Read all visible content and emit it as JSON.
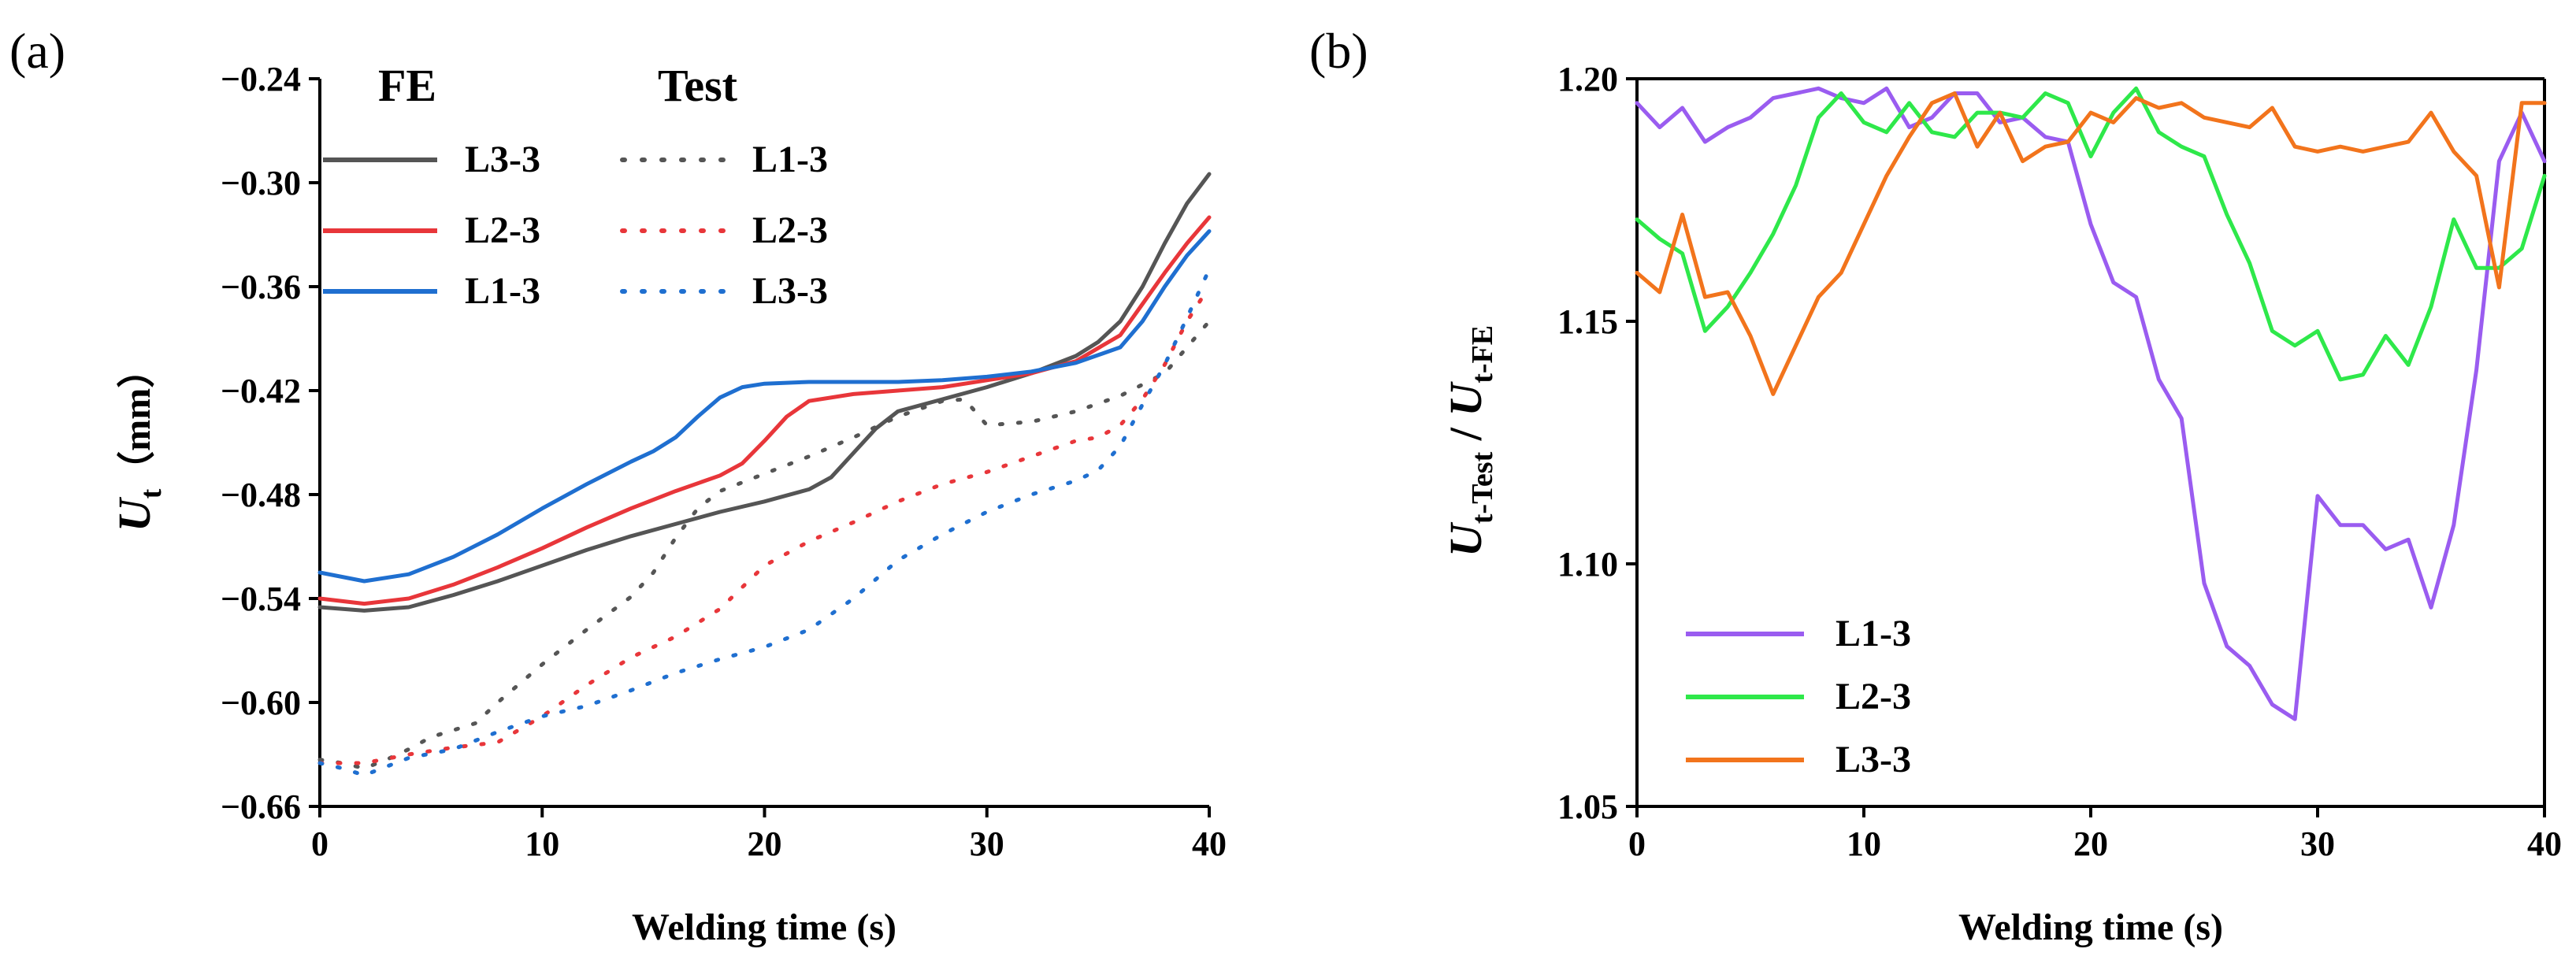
{
  "chart_data": [
    {
      "panel_label": "(a)",
      "type": "line",
      "xlabel": "Welding time (s)",
      "ylabel_main": "U",
      "ylabel_sub": "t",
      "ylabel_unit": "（mm）",
      "xlim": [
        0,
        40
      ],
      "ylim": [
        -0.66,
        -0.24
      ],
      "xticks": [
        "0",
        "10",
        "20",
        "30",
        "40"
      ],
      "yticks": [
        "−0.24",
        "−0.30",
        "−0.36",
        "−0.42",
        "−0.48",
        "−0.54",
        "−0.60",
        "−0.66"
      ],
      "legend_heads": {
        "fe": "FE",
        "test": "Test"
      },
      "legend_position": "top-left",
      "series": [
        {
          "name": "L3-3",
          "group": "FE",
          "color": "#555555",
          "dash": "solid",
          "x": [
            0,
            2,
            4,
            6,
            8,
            10,
            12,
            14,
            16,
            18,
            20,
            22,
            23,
            24,
            25,
            26,
            28,
            30,
            32,
            34,
            35,
            36,
            37,
            38,
            39,
            40
          ],
          "y": [
            -0.545,
            -0.547,
            -0.545,
            -0.538,
            -0.53,
            -0.521,
            -0.512,
            -0.504,
            -0.497,
            -0.49,
            -0.484,
            -0.477,
            -0.47,
            -0.456,
            -0.442,
            -0.432,
            -0.425,
            -0.418,
            -0.41,
            -0.4,
            -0.392,
            -0.38,
            -0.36,
            -0.335,
            -0.312,
            -0.295
          ]
        },
        {
          "name": "L2-3",
          "group": "FE",
          "color": "#e8363a",
          "dash": "solid",
          "x": [
            0,
            2,
            4,
            6,
            8,
            10,
            12,
            14,
            16,
            18,
            19,
            20,
            21,
            22,
            24,
            26,
            28,
            30,
            32,
            34,
            36,
            37,
            38,
            39,
            40
          ],
          "y": [
            -0.54,
            -0.543,
            -0.54,
            -0.532,
            -0.522,
            -0.511,
            -0.499,
            -0.488,
            -0.478,
            -0.469,
            -0.462,
            -0.449,
            -0.435,
            -0.426,
            -0.422,
            -0.42,
            -0.418,
            -0.414,
            -0.41,
            -0.403,
            -0.388,
            -0.37,
            -0.352,
            -0.335,
            -0.32
          ]
        },
        {
          "name": "L1-3",
          "group": "FE",
          "color": "#1f6fd0",
          "dash": "solid",
          "x": [
            0,
            2,
            4,
            6,
            8,
            10,
            12,
            14,
            15,
            16,
            17,
            18,
            19,
            20,
            22,
            24,
            26,
            28,
            30,
            32,
            34,
            36,
            37,
            38,
            39,
            40
          ],
          "y": [
            -0.525,
            -0.53,
            -0.526,
            -0.516,
            -0.503,
            -0.488,
            -0.474,
            -0.461,
            -0.455,
            -0.447,
            -0.435,
            -0.424,
            -0.418,
            -0.416,
            -0.415,
            -0.415,
            -0.415,
            -0.414,
            -0.412,
            -0.409,
            -0.404,
            -0.395,
            -0.38,
            -0.36,
            -0.342,
            -0.328
          ]
        },
        {
          "name": "L1-3",
          "group": "Test",
          "color": "#555555",
          "dash": "dotted",
          "x": [
            0,
            1,
            2,
            3,
            4,
            5,
            6,
            7,
            8,
            10,
            12,
            14,
            15,
            16,
            17,
            18,
            20,
            22,
            24,
            26,
            28,
            29,
            30,
            32,
            34,
            36,
            38,
            40
          ],
          "y": [
            -0.633,
            -0.635,
            -0.638,
            -0.633,
            -0.627,
            -0.62,
            -0.616,
            -0.612,
            -0.6,
            -0.578,
            -0.558,
            -0.539,
            -0.525,
            -0.505,
            -0.488,
            -0.478,
            -0.468,
            -0.458,
            -0.447,
            -0.435,
            -0.426,
            -0.425,
            -0.44,
            -0.438,
            -0.432,
            -0.423,
            -0.41,
            -0.38
          ]
        },
        {
          "name": "L2-3",
          "group": "Test",
          "color": "#e8363a",
          "dash": "dotted",
          "x": [
            0,
            2,
            4,
            6,
            8,
            10,
            12,
            14,
            16,
            18,
            20,
            22,
            24,
            26,
            28,
            30,
            32,
            34,
            35,
            36,
            37,
            38,
            39,
            40
          ],
          "y": [
            -0.635,
            -0.635,
            -0.63,
            -0.626,
            -0.623,
            -0.608,
            -0.59,
            -0.574,
            -0.562,
            -0.546,
            -0.521,
            -0.507,
            -0.496,
            -0.484,
            -0.474,
            -0.467,
            -0.458,
            -0.449,
            -0.447,
            -0.44,
            -0.425,
            -0.405,
            -0.38,
            -0.36
          ]
        },
        {
          "name": "L3-3",
          "group": "Test",
          "color": "#1f6fd0",
          "dash": "dotted",
          "x": [
            0,
            1,
            2,
            3,
            4,
            6,
            8,
            10,
            12,
            14,
            16,
            18,
            20,
            22,
            24,
            26,
            28,
            30,
            32,
            34,
            35,
            36,
            37,
            38,
            39,
            40
          ],
          "y": [
            -0.635,
            -0.638,
            -0.642,
            -0.637,
            -0.632,
            -0.627,
            -0.617,
            -0.608,
            -0.602,
            -0.593,
            -0.583,
            -0.575,
            -0.568,
            -0.558,
            -0.54,
            -0.518,
            -0.503,
            -0.49,
            -0.48,
            -0.472,
            -0.466,
            -0.452,
            -0.428,
            -0.405,
            -0.378,
            -0.35
          ]
        }
      ]
    },
    {
      "panel_label": "(b)",
      "type": "line",
      "xlabel": "Welding time (s)",
      "ylabel_num_main": "U",
      "ylabel_num_sub": "t-Test",
      "ylabel_sep": " / ",
      "ylabel_den_main": "U",
      "ylabel_den_sub": "t-FE",
      "xlim": [
        0,
        40
      ],
      "ylim": [
        1.05,
        1.2
      ],
      "xticks": [
        "0",
        "10",
        "20",
        "30",
        "40"
      ],
      "yticks": [
        "1.05",
        "1.10",
        "1.15",
        "1.20"
      ],
      "legend_position": "bottom-left",
      "series": [
        {
          "name": "L1-3",
          "color": "#9a5cf0",
          "x": [
            0,
            1,
            2,
            3,
            4,
            5,
            6,
            7,
            8,
            9,
            10,
            11,
            12,
            13,
            14,
            15,
            16,
            17,
            18,
            19,
            20,
            21,
            22,
            23,
            24,
            25,
            26,
            27,
            28,
            29,
            30,
            31,
            32,
            33,
            34,
            35,
            36,
            37,
            38,
            39,
            40
          ],
          "y": [
            1.195,
            1.19,
            1.194,
            1.187,
            1.19,
            1.192,
            1.196,
            1.197,
            1.198,
            1.196,
            1.195,
            1.198,
            1.19,
            1.192,
            1.197,
            1.197,
            1.191,
            1.192,
            1.188,
            1.187,
            1.17,
            1.158,
            1.155,
            1.138,
            1.13,
            1.096,
            1.083,
            1.079,
            1.071,
            1.068,
            1.114,
            1.108,
            1.108,
            1.103,
            1.105,
            1.091,
            1.108,
            1.14,
            1.183,
            1.193,
            1.183
          ]
        },
        {
          "name": "L2-3",
          "color": "#2ee84a",
          "x": [
            0,
            1,
            2,
            3,
            4,
            5,
            6,
            7,
            8,
            9,
            10,
            11,
            12,
            13,
            14,
            15,
            16,
            17,
            18,
            19,
            20,
            21,
            22,
            23,
            24,
            25,
            26,
            27,
            28,
            29,
            30,
            31,
            32,
            33,
            34,
            35,
            36,
            37,
            38,
            39,
            40
          ],
          "y": [
            1.171,
            1.167,
            1.164,
            1.148,
            1.153,
            1.16,
            1.168,
            1.178,
            1.192,
            1.197,
            1.191,
            1.189,
            1.195,
            1.189,
            1.188,
            1.193,
            1.193,
            1.192,
            1.197,
            1.195,
            1.184,
            1.193,
            1.198,
            1.189,
            1.186,
            1.184,
            1.172,
            1.162,
            1.148,
            1.145,
            1.148,
            1.138,
            1.139,
            1.147,
            1.141,
            1.153,
            1.171,
            1.161,
            1.161,
            1.165,
            1.18
          ]
        },
        {
          "name": "L3-3",
          "color": "#f2741c",
          "x": [
            0,
            1,
            2,
            3,
            4,
            5,
            6,
            7,
            8,
            9,
            10,
            11,
            12,
            13,
            14,
            15,
            16,
            17,
            18,
            19,
            20,
            21,
            22,
            23,
            24,
            25,
            26,
            27,
            28,
            29,
            30,
            31,
            32,
            33,
            34,
            35,
            36,
            37,
            38,
            39,
            40
          ],
          "y": [
            1.16,
            1.156,
            1.172,
            1.155,
            1.156,
            1.147,
            1.135,
            1.145,
            1.155,
            1.16,
            1.17,
            1.18,
            1.188,
            1.195,
            1.197,
            1.186,
            1.193,
            1.183,
            1.186,
            1.187,
            1.193,
            1.191,
            1.196,
            1.194,
            1.195,
            1.192,
            1.191,
            1.19,
            1.194,
            1.186,
            1.185,
            1.186,
            1.185,
            1.186,
            1.187,
            1.193,
            1.185,
            1.18,
            1.157,
            1.195,
            1.195
          ]
        }
      ]
    }
  ]
}
